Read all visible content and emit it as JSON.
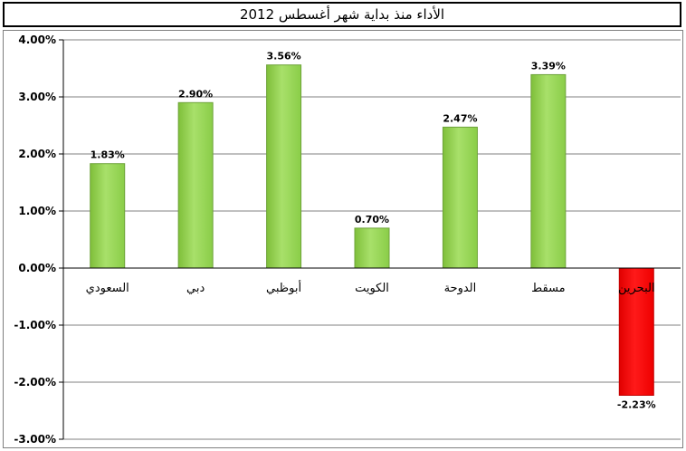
{
  "chart_data": {
    "type": "bar",
    "title": "الأداء منذ بداية شهر أغسطس 2012",
    "categories": [
      "السعودي",
      "دبي",
      "أبوظبي",
      "الكويت",
      "الدوحة",
      "مسقط",
      "البحرين"
    ],
    "values": [
      1.83,
      2.9,
      3.56,
      0.7,
      2.47,
      3.39,
      -2.23
    ],
    "data_labels": [
      "1.83%",
      "2.90%",
      "3.56%",
      "0.70%",
      "2.47%",
      "3.39%",
      "-2.23%"
    ],
    "ylim": [
      -3.0,
      4.0
    ],
    "yticks": [
      4.0,
      3.0,
      2.0,
      1.0,
      0.0,
      -1.0,
      -2.0,
      -3.0
    ],
    "ytick_labels": [
      "4.00%",
      "3.00%",
      "2.00%",
      "1.00%",
      "0.00%",
      "-1.00%",
      "-2.00%",
      "-3.00%"
    ],
    "grid": true,
    "legend": "none",
    "colors": {
      "positive": "#92d050",
      "negative": "#ff0000",
      "grid": "#808080"
    }
  }
}
